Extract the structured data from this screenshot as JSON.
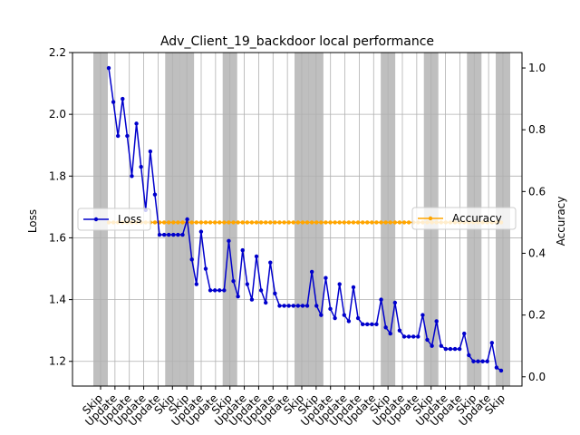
{
  "chart_data": {
    "type": "line",
    "title": "Adv_Client_19_backdoor local performance",
    "xlabel": "",
    "ylabel": "Loss",
    "y2label": "Accuracy",
    "ylim": [
      1.12,
      2.2
    ],
    "y2lim": [
      -0.03,
      1.05
    ],
    "yticks": [
      "1.2",
      "1.4",
      "1.6",
      "1.8",
      "2.0",
      "2.2"
    ],
    "y2ticks": [
      "0.0",
      "0.2",
      "0.4",
      "0.6",
      "0.8",
      "1.0"
    ],
    "grid": true,
    "x_tick_labels": [
      "Skip",
      "Update",
      "Update",
      "Update",
      "Update",
      "Skip",
      "Skip",
      "Update",
      "Update",
      "Skip",
      "Update",
      "Update",
      "Update",
      "Update",
      "Skip",
      "Skip",
      "Update",
      "Update",
      "Update",
      "Update",
      "Skip",
      "Update",
      "Update",
      "Skip",
      "Update",
      "Update",
      "Skip",
      "Update",
      "Skip"
    ],
    "shaded_label": "Skip",
    "series": [
      {
        "name": "Loss",
        "color": "#0000cc",
        "axis": "left",
        "values": [
          2.15,
          2.04,
          1.93,
          2.05,
          1.93,
          1.8,
          1.97,
          1.83,
          1.69,
          1.88,
          1.74,
          1.61,
          1.61,
          1.61,
          1.61,
          1.61,
          1.61,
          1.66,
          1.53,
          1.45,
          1.62,
          1.5,
          1.43,
          1.43,
          1.43,
          1.43,
          1.59,
          1.46,
          1.41,
          1.56,
          1.45,
          1.4,
          1.54,
          1.43,
          1.39,
          1.52,
          1.42,
          1.38,
          1.38,
          1.38,
          1.38,
          1.38,
          1.38,
          1.38,
          1.49,
          1.38,
          1.35,
          1.47,
          1.37,
          1.34,
          1.45,
          1.35,
          1.33,
          1.44,
          1.34,
          1.32,
          1.32,
          1.32,
          1.32,
          1.4,
          1.31,
          1.29,
          1.39,
          1.3,
          1.28,
          1.28,
          1.28,
          1.28,
          1.35,
          1.27,
          1.25,
          1.33,
          1.25,
          1.24,
          1.24,
          1.24,
          1.24,
          1.29,
          1.22,
          1.2,
          1.2,
          1.2,
          1.2,
          1.26,
          1.18,
          1.17
        ]
      },
      {
        "name": "Accuracy",
        "color": "#ffa500",
        "axis": "right",
        "constant_value": 0.5
      }
    ],
    "legend": [
      {
        "label": "Loss",
        "position": "left"
      },
      {
        "label": "Accuracy",
        "position": "right"
      }
    ]
  }
}
